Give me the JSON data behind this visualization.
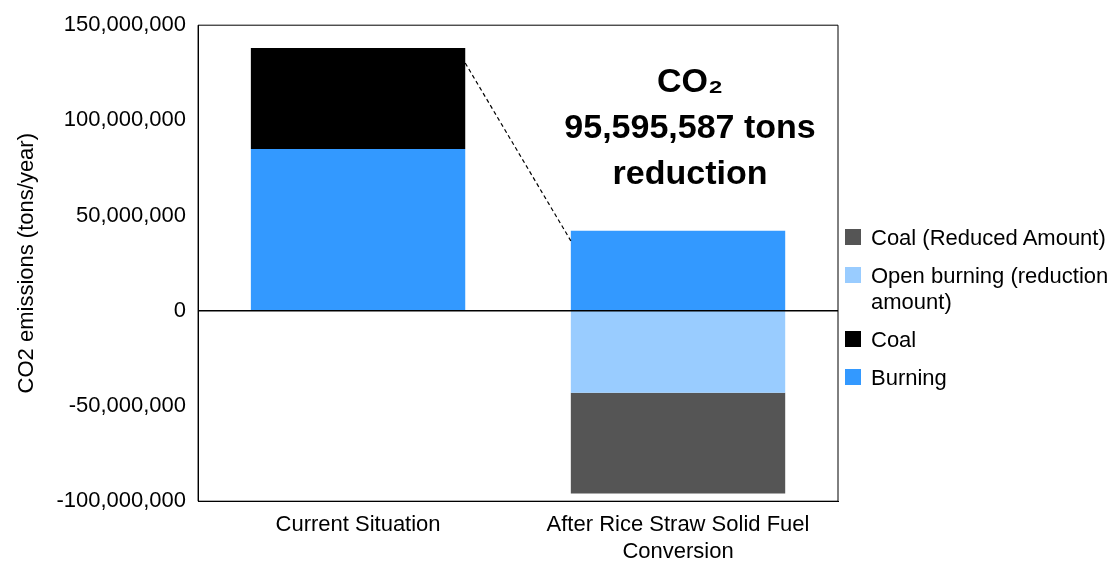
{
  "chart_data": {
    "type": "bar",
    "stacked": true,
    "ylabel": "CO2 emissions (tons/year)",
    "categories": [
      "Current Situation",
      "After Rice Straw Solid Fuel Conversion"
    ],
    "series": [
      {
        "name": "Burning",
        "color": "#3399ff",
        "values": [
          85000000,
          42000000
        ]
      },
      {
        "name": "Coal",
        "color": "#000000",
        "values": [
          53000000,
          null
        ]
      },
      {
        "name": "Open burning (reduction amount)",
        "color": "#99ccff",
        "values": [
          null,
          -43000000
        ]
      },
      {
        "name": "Coal (Reduced Amount)",
        "color": "#555555",
        "values": [
          null,
          -53000000
        ]
      }
    ],
    "ylim": [
      -100000000,
      150000000
    ],
    "yticks": [
      {
        "value": -100000000,
        "label": "-100,000,000"
      },
      {
        "value": -50000000,
        "label": "-50,000,000"
      },
      {
        "value": 0,
        "label": "0"
      },
      {
        "value": 50000000,
        "label": "50,000,000"
      },
      {
        "value": 100000000,
        "label": "100,000,000"
      },
      {
        "value": 150000000,
        "label": "150,000,000"
      }
    ],
    "ref_lines": [
      {
        "axis": "y",
        "value": 0,
        "color": "#000000"
      }
    ],
    "legend": "right",
    "annotations": [
      "CO₂",
      "95,595,587 tons",
      "reduction"
    ]
  }
}
